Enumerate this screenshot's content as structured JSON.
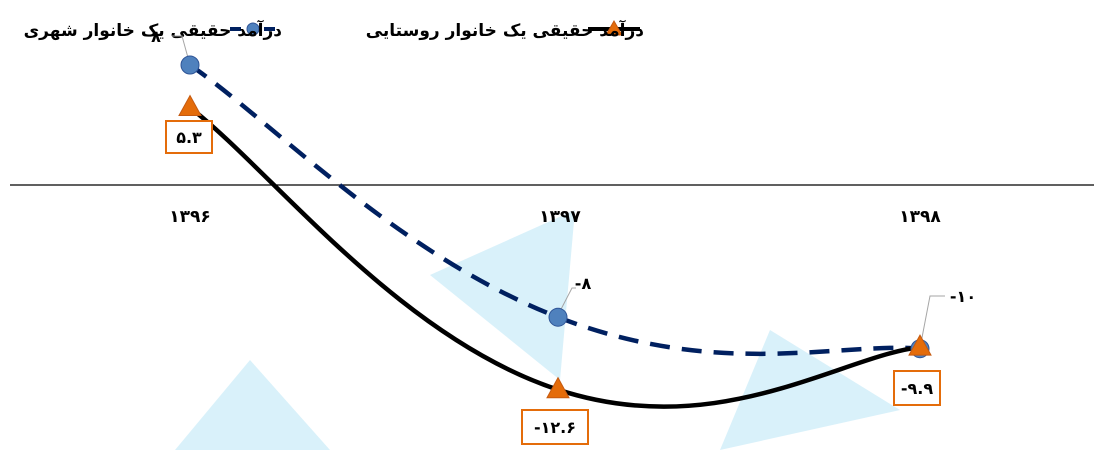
{
  "chart_data": {
    "type": "line",
    "categories": [
      "۱۳۹۶",
      "۱۳۹۷",
      "۱۳۹۸"
    ],
    "series": [
      {
        "name": "درآمد حقیقی یک خانوار شهری",
        "values": [
          8,
          -8,
          -10
        ],
        "labels": [
          "۸",
          "-۸",
          "-۱۰"
        ],
        "color": "#002060",
        "marker": "circle",
        "marker_color": "#4F81BD",
        "line_style": "dashed"
      },
      {
        "name": "درآمد حقیقی یک خانوار روستایی",
        "values": [
          5.3,
          -12.6,
          -9.9
        ],
        "labels": [
          "۵.۳",
          "-۱۲.۶",
          "-۹.۹"
        ],
        "color": "#000000",
        "marker": "triangle",
        "marker_color": "#E46C0A",
        "line_style": "solid"
      }
    ],
    "label_box_color": "#E46C0A",
    "legend_position": "top",
    "grid": false,
    "ylim": [
      -13,
      8
    ]
  }
}
